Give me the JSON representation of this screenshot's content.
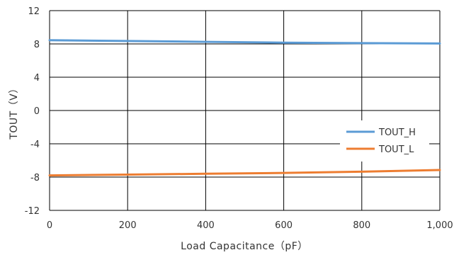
{
  "chart_data": {
    "type": "line",
    "xlabel": "Load  Capacitance（pF）",
    "ylabel": "TOUT（V）",
    "xlim": [
      0,
      1000
    ],
    "ylim": [
      -12,
      12
    ],
    "xticks": [
      0,
      200,
      400,
      600,
      800,
      1000
    ],
    "xtick_labels": [
      "0",
      "200",
      "400",
      "600",
      "800",
      "1,000"
    ],
    "yticks": [
      -12,
      -8,
      -4,
      0,
      4,
      8,
      12
    ],
    "ytick_labels": [
      "-12",
      "-8",
      "-4",
      "0",
      "4",
      "8",
      "12"
    ],
    "grid": true,
    "legend_position": "right",
    "x": [
      0,
      200,
      400,
      600,
      800,
      1000
    ],
    "series": [
      {
        "name": "TOUT_H",
        "color": "#5b9bd5",
        "values": [
          8.45,
          8.35,
          8.25,
          8.15,
          8.1,
          8.05
        ]
      },
      {
        "name": "TOUT_L",
        "color": "#ed7d31",
        "values": [
          -7.8,
          -7.7,
          -7.6,
          -7.5,
          -7.35,
          -7.15
        ]
      }
    ]
  }
}
